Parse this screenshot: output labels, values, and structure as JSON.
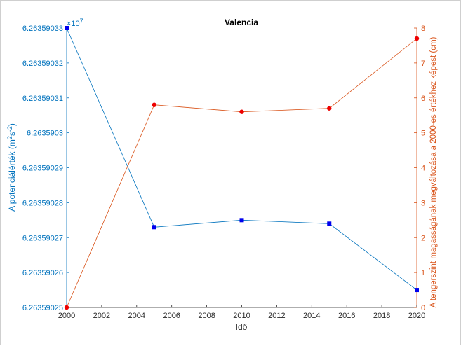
{
  "chart_data": {
    "type": "line",
    "title": "Valencia",
    "xlabel": "Idő",
    "ylabel_left": "A potenciálérték (m^2s^-2)",
    "ylabel_left_base": "A potenciálérték (m",
    "ylabel_left_sup1": "2",
    "ylabel_left_mid": "s",
    "ylabel_left_sup2": "-2",
    "ylabel_left_end": ")",
    "ylabel_right": "A tengerszint magasságának megváltozása a 2000-es értékhez képest (cm)",
    "left_multiplier": "×10",
    "left_multiplier_exp": "7",
    "x": [
      2000,
      2005,
      2010,
      2015,
      2020
    ],
    "xlim": [
      2000,
      2020
    ],
    "xticks": [
      "2000",
      "2002",
      "2004",
      "2006",
      "2008",
      "2010",
      "2012",
      "2014",
      "2016",
      "2018",
      "2020"
    ],
    "ylim_left": [
      6.26359025,
      6.26359033
    ],
    "yticks_left": [
      "6.26359025",
      "6.26359026",
      "6.26359027",
      "6.26359028",
      "6.26359029",
      "6.2635903",
      "6.26359031",
      "6.26359032",
      "6.26359033"
    ],
    "ylim_right": [
      0,
      8
    ],
    "yticks_right": [
      "0",
      "1",
      "2",
      "3",
      "4",
      "5",
      "6",
      "7",
      "8"
    ],
    "series": [
      {
        "name": "",
        "axis": "left",
        "marker": "square",
        "color": "#0072bd",
        "marker_color": "#0000ee",
        "values": [
          6.26359033,
          6.263590273,
          6.263590275,
          6.263590274,
          6.263590255
        ]
      },
      {
        "name": "",
        "axis": "right",
        "marker": "circle",
        "color": "#d95319",
        "marker_color": "#ee0000",
        "values": [
          0,
          5.8,
          5.6,
          5.7,
          7.7
        ]
      }
    ],
    "grid": false,
    "legend": "none"
  }
}
